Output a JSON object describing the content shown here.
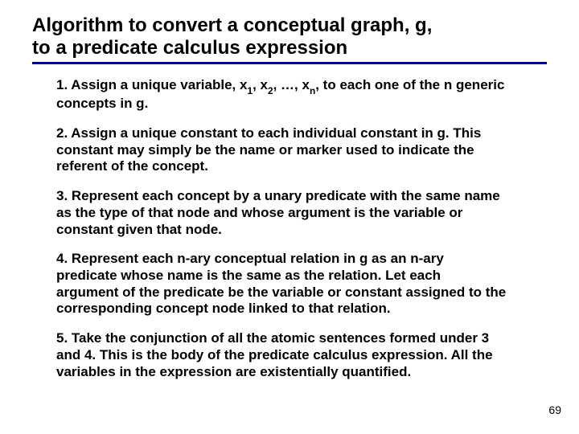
{
  "title_line1": "Algorithm to convert a conceptual graph, g,",
  "title_line2": "to a predicate calculus expression",
  "steps": {
    "s1a": "1. Assign a unique variable, x",
    "s1b": ", x",
    "s1c": ", …, x",
    "s1d": ", to each one of the n generic concepts in g.",
    "sub1": "1",
    "sub2": "2",
    "subn": "n",
    "s2": "2. Assign a unique constant to each individual constant in g. This constant may simply be the name or marker used to indicate the referent of the concept.",
    "s3": "3. Represent each concept by a unary predicate with the same name as the type of that node and whose argument is the variable or constant given that node.",
    "s4": "4. Represent each n-ary conceptual relation in g as an n-ary predicate whose name is the same as the relation. Let each argument of the predicate be the variable or constant assigned to the corresponding concept node linked to that relation.",
    "s5": "5. Take the conjunction of all the atomic sentences formed under 3 and 4. This is the body of the predicate calculus expression. All the variables in the expression are existentially quantified."
  },
  "page_number": "69",
  "colors": {
    "underline": "#000080",
    "text": "#000000",
    "background": "#ffffff"
  }
}
